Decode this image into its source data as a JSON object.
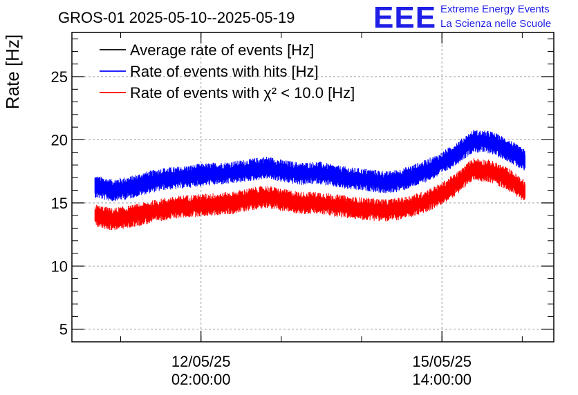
{
  "window": {
    "title": "GROS-01 2025-05-10--2025-05-19"
  },
  "brand": {
    "logo_text": "EEE",
    "line1": "Extreme Energy Events",
    "line2": "La Scienza nelle Scuole",
    "color": "#1f1fe6"
  },
  "chart_data": {
    "type": "line",
    "title": "GROS-01 2025-05-10--2025-05-19",
    "ylabel": "Rate [Hz]",
    "xlabel": "",
    "ylim": [
      4,
      28.5
    ],
    "xlim": [
      "2025-05-10T05:00",
      "2025-05-17T05:00"
    ],
    "grid": true,
    "legend_position": "top-left",
    "y_ticks": [
      5,
      10,
      15,
      20,
      25
    ],
    "x_ticks": [
      {
        "x": "2025-05-12T02:00",
        "label_date": "12/05/25",
        "label_time": "02:00:00"
      },
      {
        "x": "2025-05-15T14:00",
        "label_date": "15/05/25",
        "label_time": "14:00:00"
      }
    ],
    "x_sample_times": [
      "2025-05-10T13:00",
      "2025-05-10T19:00",
      "2025-05-11T01:00",
      "2025-05-11T07:00",
      "2025-05-11T13:00",
      "2025-05-11T19:00",
      "2025-05-12T01:00",
      "2025-05-12T07:00",
      "2025-05-12T13:00",
      "2025-05-12T19:00",
      "2025-05-13T01:00",
      "2025-05-13T07:00",
      "2025-05-13T13:00",
      "2025-05-13T19:00",
      "2025-05-14T01:00",
      "2025-05-14T07:00",
      "2025-05-14T13:00",
      "2025-05-14T19:00",
      "2025-05-15T01:00",
      "2025-05-15T07:00",
      "2025-05-15T13:00",
      "2025-05-15T19:00",
      "2025-05-16T01:00",
      "2025-05-16T07:00",
      "2025-05-16T13:00",
      "2025-05-16T19:00"
    ],
    "series": [
      {
        "name": "Average rate of events [Hz]",
        "color": "#000000",
        "values": []
      },
      {
        "name": "Rate of events with hits [Hz]",
        "color": "#0000ff",
        "values": [
          16.3,
          16.0,
          16.2,
          16.6,
          16.9,
          17.0,
          17.2,
          17.3,
          17.4,
          17.6,
          17.8,
          17.5,
          17.3,
          17.4,
          17.1,
          16.9,
          16.8,
          16.6,
          16.9,
          17.4,
          18.0,
          18.9,
          19.9,
          19.8,
          19.2,
          18.3
        ],
        "band": 0.9
      },
      {
        "name": "Rate of events with χ² < 10.0 [Hz]",
        "color": "#ff0000",
        "values": [
          14.0,
          13.7,
          13.9,
          14.2,
          14.5,
          14.7,
          14.8,
          14.9,
          15.0,
          15.3,
          15.5,
          15.2,
          15.0,
          15.0,
          14.8,
          14.6,
          14.5,
          14.4,
          14.6,
          15.0,
          15.6,
          16.5,
          17.7,
          17.5,
          16.9,
          15.9
        ],
        "band": 0.9
      }
    ]
  }
}
